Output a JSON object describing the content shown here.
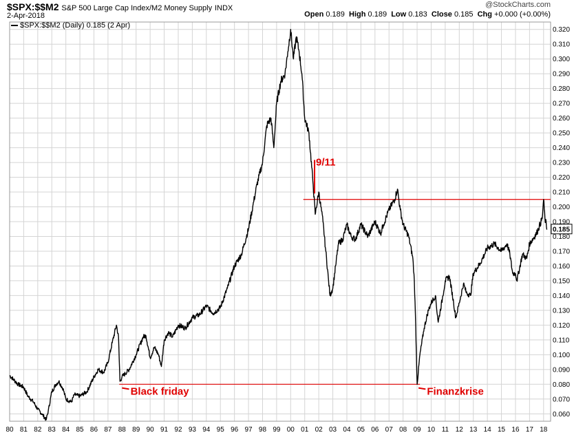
{
  "header": {
    "symbol": "$SPX:$$M2",
    "description": "S&P 500 Large Cap Index/M2 Money Supply",
    "exchange": "INDX",
    "date": "2-Apr-2018",
    "brand": "@StockCharts.com",
    "open_label": "Open",
    "open_value": "0.189",
    "high_label": "High",
    "high_value": "0.189",
    "low_label": "Low",
    "low_value": "0.183",
    "close_label": "Close",
    "close_value": "0.185",
    "chg_label": "Chg",
    "chg_value": "+0.000 (+0.00%)"
  },
  "legend": "$SPX:$$M2 (Daily) 0.185 (2 Apr)",
  "colors": {
    "line": "#000000",
    "annotation": "#e00000",
    "grid": "#d4d4d4",
    "last_value_box": "#ffffff"
  },
  "chart_data": {
    "type": "line",
    "title": "",
    "xlabel": "",
    "ylabel": "",
    "xlim": [
      1980.0,
      2018.5
    ],
    "ylim": [
      0.055,
      0.325
    ],
    "x_tick_labels": [
      "80",
      "81",
      "82",
      "83",
      "84",
      "85",
      "86",
      "87",
      "88",
      "89",
      "90",
      "91",
      "92",
      "93",
      "94",
      "95",
      "96",
      "97",
      "98",
      "99",
      "00",
      "01",
      "02",
      "03",
      "04",
      "05",
      "06",
      "07",
      "08",
      "09",
      "10",
      "11",
      "12",
      "13",
      "14",
      "15",
      "16",
      "17",
      "18"
    ],
    "y_tick_labels": [
      "0.060",
      "0.070",
      "0.080",
      "0.090",
      "0.100",
      "0.110",
      "0.120",
      "0.130",
      "0.140",
      "0.150",
      "0.160",
      "0.170",
      "0.180",
      "0.190",
      "0.200",
      "0.210",
      "0.220",
      "0.230",
      "0.240",
      "0.250",
      "0.260",
      "0.270",
      "0.280",
      "0.290",
      "0.300",
      "0.310",
      "0.320"
    ],
    "grid": true,
    "last_value_label": "0.185",
    "series": [
      {
        "x": [
          1980.0,
          1980.3,
          1980.6,
          1981.0,
          1981.3,
          1981.7,
          1982.0,
          1982.3,
          1982.6,
          1982.75,
          1983.0,
          1983.3,
          1983.5,
          1983.8,
          1984.0,
          1984.4,
          1984.6,
          1985.0,
          1985.5,
          1986.0,
          1986.3,
          1986.7,
          1987.0,
          1987.3,
          1987.6,
          1987.75,
          1987.85,
          1988.0,
          1988.5,
          1989.0,
          1989.5,
          1989.7,
          1990.0,
          1990.3,
          1990.6,
          1990.8,
          1991.0,
          1991.3,
          1991.6,
          1992.0,
          1992.5,
          1993.0,
          1993.5,
          1994.0,
          1994.5,
          1995.0,
          1995.5,
          1996.0,
          1996.5,
          1997.0,
          1997.3,
          1997.6,
          1998.0,
          1998.3,
          1998.6,
          1998.8,
          1999.0,
          1999.3,
          1999.6,
          1999.8,
          2000.0,
          2000.2,
          2000.4,
          2000.6,
          2000.8,
          2001.0,
          2001.3,
          2001.6,
          2001.75,
          2002.0,
          2002.3,
          2002.5,
          2002.7,
          2002.8,
          2003.0,
          2003.2,
          2003.4,
          2003.7,
          2004.0,
          2004.3,
          2004.6,
          2005.0,
          2005.5,
          2006.0,
          2006.4,
          2006.6,
          2007.0,
          2007.4,
          2007.6,
          2007.8,
          2008.0,
          2008.4,
          2008.7,
          2008.8,
          2008.9,
          2009.0,
          2009.2,
          2009.5,
          2009.8,
          2010.0,
          2010.3,
          2010.5,
          2010.8,
          2011.0,
          2011.3,
          2011.6,
          2011.75,
          2012.0,
          2012.3,
          2012.5,
          2012.8,
          2013.0,
          2013.5,
          2014.0,
          2014.5,
          2015.0,
          2015.4,
          2015.6,
          2015.8,
          2016.0,
          2016.1,
          2016.5,
          2016.8,
          2017.0,
          2017.5,
          2017.9,
          2018.0,
          2018.1,
          2018.25
        ],
        "y": [
          0.086,
          0.083,
          0.08,
          0.078,
          0.072,
          0.068,
          0.063,
          0.06,
          0.056,
          0.062,
          0.075,
          0.08,
          0.082,
          0.077,
          0.07,
          0.068,
          0.073,
          0.072,
          0.075,
          0.085,
          0.09,
          0.088,
          0.095,
          0.108,
          0.12,
          0.112,
          0.082,
          0.085,
          0.09,
          0.1,
          0.112,
          0.113,
          0.098,
          0.105,
          0.1,
          0.092,
          0.11,
          0.115,
          0.112,
          0.12,
          0.118,
          0.125,
          0.127,
          0.133,
          0.128,
          0.132,
          0.145,
          0.16,
          0.168,
          0.185,
          0.2,
          0.215,
          0.23,
          0.255,
          0.26,
          0.24,
          0.27,
          0.285,
          0.29,
          0.305,
          0.32,
          0.3,
          0.315,
          0.305,
          0.29,
          0.26,
          0.25,
          0.215,
          0.195,
          0.21,
          0.19,
          0.17,
          0.15,
          0.14,
          0.145,
          0.16,
          0.175,
          0.178,
          0.188,
          0.18,
          0.178,
          0.188,
          0.18,
          0.19,
          0.182,
          0.188,
          0.198,
          0.205,
          0.212,
          0.198,
          0.188,
          0.18,
          0.165,
          0.15,
          0.12,
          0.08,
          0.1,
          0.118,
          0.13,
          0.135,
          0.14,
          0.122,
          0.138,
          0.15,
          0.153,
          0.135,
          0.125,
          0.135,
          0.148,
          0.142,
          0.14,
          0.155,
          0.162,
          0.172,
          0.175,
          0.17,
          0.175,
          0.168,
          0.155,
          0.155,
          0.15,
          0.168,
          0.165,
          0.175,
          0.182,
          0.192,
          0.205,
          0.192,
          0.185
        ]
      }
    ],
    "annotations": [
      {
        "type": "hline",
        "y": 0.205,
        "x_from": 2000.9,
        "x_to": 2018.5
      },
      {
        "type": "hline",
        "y": 0.08,
        "x_from": 1987.8,
        "x_to": 2009.2
      },
      {
        "type": "text",
        "text": "9/11",
        "x": 2001.8,
        "y": 0.228,
        "pointer_to": [
          2001.7,
          0.209
        ]
      },
      {
        "type": "text",
        "text": "Black friday",
        "x": 1988.6,
        "y": 0.073,
        "pointer_to": [
          1988.0,
          0.0775
        ]
      },
      {
        "type": "text",
        "text": "Finanzkrise",
        "x": 2009.7,
        "y": 0.073,
        "pointer_to": [
          2009.1,
          0.0775
        ]
      }
    ]
  }
}
